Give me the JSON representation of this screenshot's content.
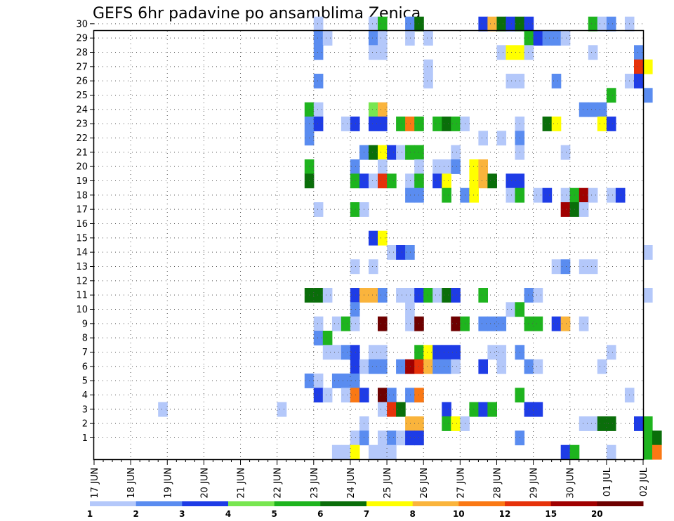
{
  "chart_data": {
    "type": "heatmap",
    "title": "GEFS 6hr padavine po ansamblima Zenica",
    "xlabel": "",
    "ylabel": "",
    "x_ticks": [
      "17 JUN",
      "18 JUN",
      "19 JUN",
      "20 JUN",
      "21 JUN",
      "22 JUN",
      "23 JUN",
      "24 JUN",
      "25 JUN",
      "26 JUN",
      "27 JUN",
      "28 JUN",
      "29 JUN",
      "30 JUN",
      "01 JUL",
      "02 JUL"
    ],
    "y_ticks": [
      "1",
      "2",
      "3",
      "4",
      "5",
      "6",
      "7",
      "8",
      "9",
      "10",
      "11",
      "12",
      "13",
      "14",
      "15",
      "16",
      "17",
      "18",
      "19",
      "20",
      "21",
      "22",
      "23",
      "24",
      "25",
      "26",
      "27",
      "28",
      "29",
      "30"
    ],
    "grid": true,
    "colorbar": {
      "labels": [
        "1",
        "2",
        "3",
        "4",
        "5",
        "6",
        "7",
        "8",
        "10",
        "12",
        "15",
        "20"
      ],
      "colors": [
        "#b4c8fa",
        "#5a8cf0",
        "#1e3ce6",
        "#78e650",
        "#1eb41e",
        "#0a6e0a",
        "#ffff00",
        "#fab43c",
        "#fa7814",
        "#e6320a",
        "#a00000",
        "#6e0000"
      ]
    },
    "levels_note": "value = colour class index 1..12 matching colorbar; cells at [day_offset_from_17_JUN, member]",
    "cells": [
      [
        6.0,
        30,
        1
      ],
      [
        7.5,
        30,
        1
      ],
      [
        7.75,
        30,
        5
      ],
      [
        8.5,
        30,
        2
      ],
      [
        8.75,
        30,
        6
      ],
      [
        10.5,
        30,
        3
      ],
      [
        10.75,
        30,
        8
      ],
      [
        11.0,
        30,
        6
      ],
      [
        11.25,
        30,
        3
      ],
      [
        11.5,
        30,
        6
      ],
      [
        11.75,
        30,
        3
      ],
      [
        13.5,
        30,
        5
      ],
      [
        13.75,
        30,
        1
      ],
      [
        14.0,
        30,
        2
      ],
      [
        14.5,
        30,
        1
      ],
      [
        6.0,
        29,
        2
      ],
      [
        6.25,
        29,
        1
      ],
      [
        7.5,
        29,
        2
      ],
      [
        7.75,
        29,
        1
      ],
      [
        8.5,
        29,
        1
      ],
      [
        9.0,
        29,
        1
      ],
      [
        11.75,
        29,
        5
      ],
      [
        12.0,
        29,
        3
      ],
      [
        12.25,
        29,
        2
      ],
      [
        12.5,
        29,
        2
      ],
      [
        12.75,
        29,
        1
      ],
      [
        6.0,
        28,
        2
      ],
      [
        7.5,
        28,
        1
      ],
      [
        7.75,
        28,
        1
      ],
      [
        11.0,
        28,
        1
      ],
      [
        11.25,
        28,
        7
      ],
      [
        11.5,
        28,
        7
      ],
      [
        11.75,
        28,
        1
      ],
      [
        13.5,
        28,
        1
      ],
      [
        14.75,
        28,
        2
      ],
      [
        9.0,
        27,
        1
      ],
      [
        14.75,
        27,
        10
      ],
      [
        15.0,
        27,
        7
      ],
      [
        6.0,
        26,
        2
      ],
      [
        9.0,
        26,
        1
      ],
      [
        11.25,
        26,
        1
      ],
      [
        11.5,
        26,
        1
      ],
      [
        12.5,
        26,
        2
      ],
      [
        14.5,
        26,
        1
      ],
      [
        14.75,
        26,
        3
      ],
      [
        14.0,
        25,
        5
      ],
      [
        15.0,
        25,
        2
      ],
      [
        5.75,
        24,
        5
      ],
      [
        6.0,
        24,
        1
      ],
      [
        7.5,
        24,
        4
      ],
      [
        7.75,
        24,
        8
      ],
      [
        13.25,
        24,
        2
      ],
      [
        13.5,
        24,
        2
      ],
      [
        13.75,
        24,
        2
      ],
      [
        5.75,
        23,
        2
      ],
      [
        6.0,
        23,
        3
      ],
      [
        6.75,
        23,
        1
      ],
      [
        7.0,
        23,
        3
      ],
      [
        7.5,
        23,
        3
      ],
      [
        7.75,
        23,
        3
      ],
      [
        8.25,
        23,
        5
      ],
      [
        8.5,
        23,
        9
      ],
      [
        8.75,
        23,
        5
      ],
      [
        9.25,
        23,
        5
      ],
      [
        9.5,
        23,
        6
      ],
      [
        9.75,
        23,
        5
      ],
      [
        10.0,
        23,
        1
      ],
      [
        11.5,
        23,
        1
      ],
      [
        12.25,
        23,
        6
      ],
      [
        12.5,
        23,
        7
      ],
      [
        13.75,
        23,
        7
      ],
      [
        14.0,
        23,
        3
      ],
      [
        5.75,
        22,
        2
      ],
      [
        10.5,
        22,
        1
      ],
      [
        11.0,
        22,
        1
      ],
      [
        11.5,
        22,
        2
      ],
      [
        7.25,
        21,
        2
      ],
      [
        7.5,
        21,
        6
      ],
      [
        7.75,
        21,
        7
      ],
      [
        8.0,
        21,
        3
      ],
      [
        8.25,
        21,
        1
      ],
      [
        8.5,
        21,
        5
      ],
      [
        8.75,
        21,
        5
      ],
      [
        9.75,
        21,
        1
      ],
      [
        11.5,
        21,
        1
      ],
      [
        12.75,
        21,
        1
      ],
      [
        5.75,
        20,
        5
      ],
      [
        7.0,
        20,
        2
      ],
      [
        7.75,
        20,
        1
      ],
      [
        8.75,
        20,
        1
      ],
      [
        9.25,
        20,
        1
      ],
      [
        9.5,
        20,
        1
      ],
      [
        9.75,
        20,
        2
      ],
      [
        10.25,
        20,
        7
      ],
      [
        10.5,
        20,
        8
      ],
      [
        5.75,
        19,
        6
      ],
      [
        7.0,
        19,
        5
      ],
      [
        7.25,
        19,
        3
      ],
      [
        7.5,
        19,
        1
      ],
      [
        7.75,
        19,
        10
      ],
      [
        8.0,
        19,
        5
      ],
      [
        8.5,
        19,
        1
      ],
      [
        8.75,
        19,
        5
      ],
      [
        9.25,
        19,
        3
      ],
      [
        9.5,
        19,
        7
      ],
      [
        10.25,
        19,
        7
      ],
      [
        10.5,
        19,
        8
      ],
      [
        10.75,
        19,
        6
      ],
      [
        11.25,
        19,
        3
      ],
      [
        11.5,
        19,
        3
      ],
      [
        8.5,
        18,
        2
      ],
      [
        8.75,
        18,
        2
      ],
      [
        9.5,
        18,
        5
      ],
      [
        10.0,
        18,
        2
      ],
      [
        10.25,
        18,
        7
      ],
      [
        11.25,
        18,
        1
      ],
      [
        11.5,
        18,
        5
      ],
      [
        12.0,
        18,
        1
      ],
      [
        12.25,
        18,
        3
      ],
      [
        12.75,
        18,
        1
      ],
      [
        13.0,
        18,
        5
      ],
      [
        13.25,
        18,
        11
      ],
      [
        13.5,
        18,
        1
      ],
      [
        14.0,
        18,
        1
      ],
      [
        14.25,
        18,
        3
      ],
      [
        6.0,
        17,
        1
      ],
      [
        7.0,
        17,
        5
      ],
      [
        7.25,
        17,
        1
      ],
      [
        12.75,
        17,
        11
      ],
      [
        13.0,
        17,
        6
      ],
      [
        13.25,
        17,
        1
      ],
      [
        7.5,
        15,
        3
      ],
      [
        7.75,
        15,
        7
      ],
      [
        8.0,
        14,
        1
      ],
      [
        8.25,
        14,
        3
      ],
      [
        8.5,
        14,
        2
      ],
      [
        15.0,
        14,
        1
      ],
      [
        7.0,
        13,
        1
      ],
      [
        7.5,
        13,
        1
      ],
      [
        12.5,
        13,
        1
      ],
      [
        12.75,
        13,
        2
      ],
      [
        13.25,
        13,
        1
      ],
      [
        13.5,
        13,
        1
      ],
      [
        5.75,
        11,
        6
      ],
      [
        6.0,
        11,
        6
      ],
      [
        6.25,
        11,
        1
      ],
      [
        7.0,
        11,
        3
      ],
      [
        7.25,
        11,
        8
      ],
      [
        7.5,
        11,
        8
      ],
      [
        7.75,
        11,
        2
      ],
      [
        8.25,
        11,
        1
      ],
      [
        8.5,
        11,
        1
      ],
      [
        8.75,
        11,
        3
      ],
      [
        9.0,
        11,
        5
      ],
      [
        9.25,
        11,
        1
      ],
      [
        9.5,
        11,
        6
      ],
      [
        9.75,
        11,
        3
      ],
      [
        10.5,
        11,
        5
      ],
      [
        11.75,
        11,
        2
      ],
      [
        12.0,
        11,
        1
      ],
      [
        15.0,
        11,
        1
      ],
      [
        7.0,
        10,
        2
      ],
      [
        8.5,
        10,
        1
      ],
      [
        11.25,
        10,
        1
      ],
      [
        11.5,
        10,
        5
      ],
      [
        6.0,
        9,
        1
      ],
      [
        6.5,
        9,
        1
      ],
      [
        6.75,
        9,
        5
      ],
      [
        7.0,
        9,
        1
      ],
      [
        7.75,
        9,
        12
      ],
      [
        8.5,
        9,
        1
      ],
      [
        8.75,
        9,
        12
      ],
      [
        9.75,
        9,
        12
      ],
      [
        10.0,
        9,
        5
      ],
      [
        10.5,
        9,
        2
      ],
      [
        10.75,
        9,
        2
      ],
      [
        11.0,
        9,
        2
      ],
      [
        11.75,
        9,
        5
      ],
      [
        12.0,
        9,
        5
      ],
      [
        12.5,
        9,
        3
      ],
      [
        12.75,
        9,
        8
      ],
      [
        13.25,
        9,
        1
      ],
      [
        6.0,
        8,
        2
      ],
      [
        6.25,
        8,
        5
      ],
      [
        6.25,
        7,
        1
      ],
      [
        6.5,
        7,
        1
      ],
      [
        6.75,
        7,
        2
      ],
      [
        7.0,
        7,
        3
      ],
      [
        7.5,
        7,
        1
      ],
      [
        7.75,
        7,
        1
      ],
      [
        8.75,
        7,
        5
      ],
      [
        9.0,
        7,
        7
      ],
      [
        9.25,
        7,
        3
      ],
      [
        9.5,
        7,
        3
      ],
      [
        9.75,
        7,
        3
      ],
      [
        10.75,
        7,
        1
      ],
      [
        11.0,
        7,
        1
      ],
      [
        11.5,
        7,
        2
      ],
      [
        14.0,
        7,
        1
      ],
      [
        7.0,
        6,
        3
      ],
      [
        7.25,
        6,
        1
      ],
      [
        7.5,
        6,
        2
      ],
      [
        7.75,
        6,
        2
      ],
      [
        8.25,
        6,
        2
      ],
      [
        8.5,
        6,
        11
      ],
      [
        8.75,
        6,
        10
      ],
      [
        9.0,
        6,
        8
      ],
      [
        9.25,
        6,
        2
      ],
      [
        9.5,
        6,
        2
      ],
      [
        9.75,
        6,
        1
      ],
      [
        10.5,
        6,
        3
      ],
      [
        11.0,
        6,
        1
      ],
      [
        11.75,
        6,
        2
      ],
      [
        12.0,
        6,
        1
      ],
      [
        13.75,
        6,
        1
      ],
      [
        5.75,
        5,
        2
      ],
      [
        6.0,
        5,
        1
      ],
      [
        6.5,
        5,
        2
      ],
      [
        6.75,
        5,
        2
      ],
      [
        7.0,
        5,
        2
      ],
      [
        6.0,
        4,
        3
      ],
      [
        6.25,
        4,
        1
      ],
      [
        6.75,
        4,
        1
      ],
      [
        7.0,
        4,
        9
      ],
      [
        7.25,
        4,
        3
      ],
      [
        7.75,
        4,
        12
      ],
      [
        8.0,
        4,
        2
      ],
      [
        8.5,
        4,
        2
      ],
      [
        8.75,
        4,
        9
      ],
      [
        11.5,
        4,
        5
      ],
      [
        14.5,
        4,
        1
      ],
      [
        1.75,
        3,
        1
      ],
      [
        5.0,
        3,
        1
      ],
      [
        7.75,
        3,
        1
      ],
      [
        8.0,
        3,
        10
      ],
      [
        8.25,
        3,
        6
      ],
      [
        9.5,
        3,
        3
      ],
      [
        10.25,
        3,
        5
      ],
      [
        10.5,
        3,
        3
      ],
      [
        10.75,
        3,
        5
      ],
      [
        11.75,
        3,
        3
      ],
      [
        12.0,
        3,
        3
      ],
      [
        7.25,
        2,
        1
      ],
      [
        8.5,
        2,
        8
      ],
      [
        8.75,
        2,
        8
      ],
      [
        9.5,
        2,
        5
      ],
      [
        9.75,
        2,
        7
      ],
      [
        10.0,
        2,
        1
      ],
      [
        13.25,
        2,
        1
      ],
      [
        13.5,
        2,
        1
      ],
      [
        13.75,
        2,
        6
      ],
      [
        14.0,
        2,
        6
      ],
      [
        14.75,
        2,
        3
      ],
      [
        15.0,
        2,
        5
      ],
      [
        7.0,
        1,
        1
      ],
      [
        7.25,
        1,
        2
      ],
      [
        7.75,
        1,
        1
      ],
      [
        8.0,
        1,
        2
      ],
      [
        8.25,
        1,
        1
      ],
      [
        8.5,
        1,
        3
      ],
      [
        8.75,
        1,
        3
      ],
      [
        11.5,
        1,
        2
      ],
      [
        15.0,
        1,
        5
      ],
      [
        15.25,
        1,
        6
      ],
      [
        6.5,
        0,
        1
      ],
      [
        6.75,
        0,
        1
      ],
      [
        7.0,
        0,
        7
      ],
      [
        7.5,
        0,
        1
      ],
      [
        7.75,
        0,
        1
      ],
      [
        8.0,
        0,
        1
      ],
      [
        12.75,
        0,
        3
      ],
      [
        13.0,
        0,
        5
      ],
      [
        14.0,
        0,
        1
      ],
      [
        15.0,
        0,
        5
      ],
      [
        15.25,
        0,
        9
      ]
    ]
  }
}
